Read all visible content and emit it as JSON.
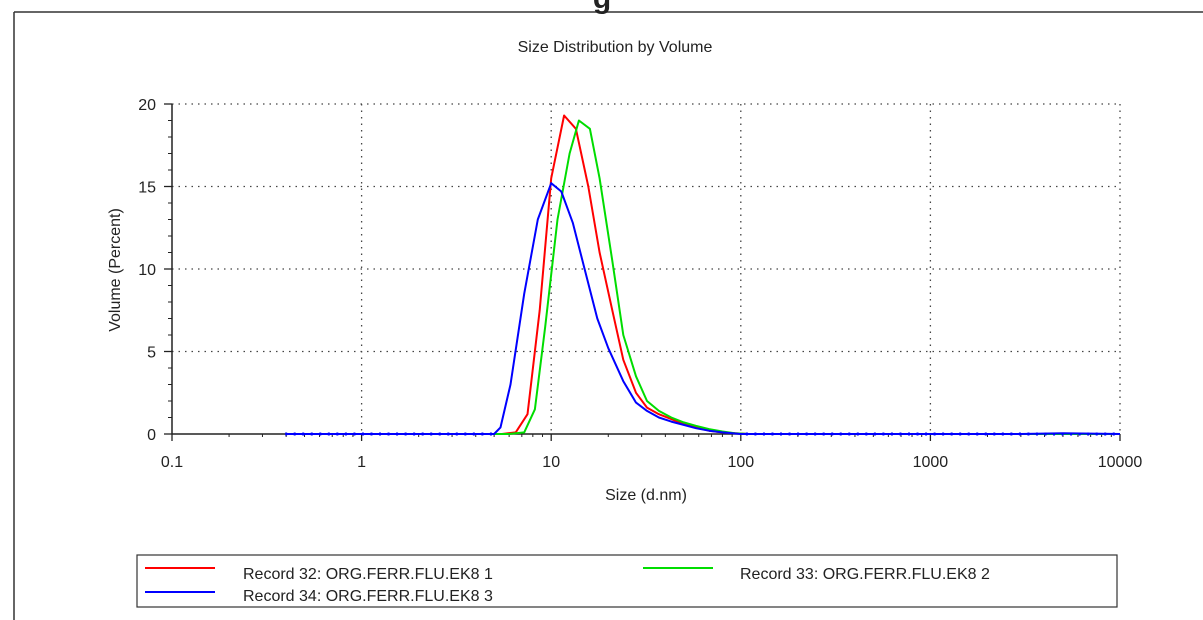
{
  "top_fragment": "g",
  "chart_data": {
    "type": "line",
    "title": "Size Distribution by Volume",
    "xlabel": "Size (d.nm)",
    "ylabel": "Volume (Percent)",
    "x_scale": "log",
    "xlim": [
      0.1,
      10000
    ],
    "ylim": [
      0,
      20
    ],
    "x_ticks": [
      0.1,
      1,
      10,
      100,
      1000,
      10000
    ],
    "x_tick_labels": [
      "0.1",
      "1",
      "10",
      "100",
      "1000",
      "10000"
    ],
    "y_ticks": [
      0,
      5,
      10,
      15,
      20
    ],
    "y_tick_labels": [
      "0",
      "5",
      "10",
      "15",
      "20"
    ],
    "grid": true,
    "legend_position": "bottom",
    "series": [
      {
        "name": "Record 32: ORG.FERR.FLU.EK8 1",
        "color": "#ff0000",
        "x": [
          0.4,
          1,
          3,
          5.5,
          6.5,
          7.5,
          8.7,
          10,
          11.7,
          13.5,
          15.7,
          18,
          21,
          24,
          28,
          32,
          37,
          43,
          50,
          58,
          68,
          80,
          93,
          110,
          150,
          300,
          1000,
          3000,
          10000
        ],
        "y": [
          0,
          0,
          0,
          0,
          0.1,
          1.2,
          7.5,
          15.5,
          19.3,
          18.5,
          15,
          11,
          7.5,
          4.5,
          2.5,
          1.6,
          1.2,
          0.9,
          0.6,
          0.4,
          0.2,
          0.1,
          0.05,
          0,
          0,
          0,
          0,
          0,
          0
        ]
      },
      {
        "name": "Record 33: ORG.FERR.FLU.EK8 2",
        "color": "#00dd00",
        "x": [
          0.4,
          1,
          3,
          6,
          7.2,
          8.2,
          9.3,
          10.8,
          12.5,
          14,
          16,
          18,
          21,
          24,
          28,
          32,
          37,
          43,
          50,
          58,
          68,
          80,
          93,
          110,
          150,
          300,
          1000,
          3000,
          10000
        ],
        "y": [
          0,
          0,
          0,
          0,
          0.1,
          1.5,
          6.5,
          13,
          17,
          19,
          18.5,
          15.5,
          10.5,
          6,
          3.5,
          2,
          1.4,
          1,
          0.7,
          0.5,
          0.3,
          0.15,
          0.05,
          0,
          0,
          0,
          0,
          0,
          0
        ]
      },
      {
        "name": "Record 34: ORG.FERR.FLU.EK8 3",
        "color": "#0000ff",
        "x": [
          0.4,
          1,
          3,
          5,
          5.4,
          6.1,
          7.2,
          8.5,
          10,
          11.3,
          13,
          15,
          17.5,
          20,
          24,
          28,
          32,
          37,
          43,
          50,
          58,
          68,
          80,
          100,
          150,
          300,
          1000,
          3000,
          5000,
          10000
        ],
        "y": [
          0,
          0,
          0,
          0,
          0.4,
          3,
          8.5,
          13,
          15.2,
          14.7,
          12.8,
          10,
          7,
          5.2,
          3.2,
          1.9,
          1.4,
          1,
          0.75,
          0.55,
          0.35,
          0.2,
          0.1,
          0,
          0,
          0,
          0,
          0,
          0.05,
          0
        ]
      }
    ]
  }
}
